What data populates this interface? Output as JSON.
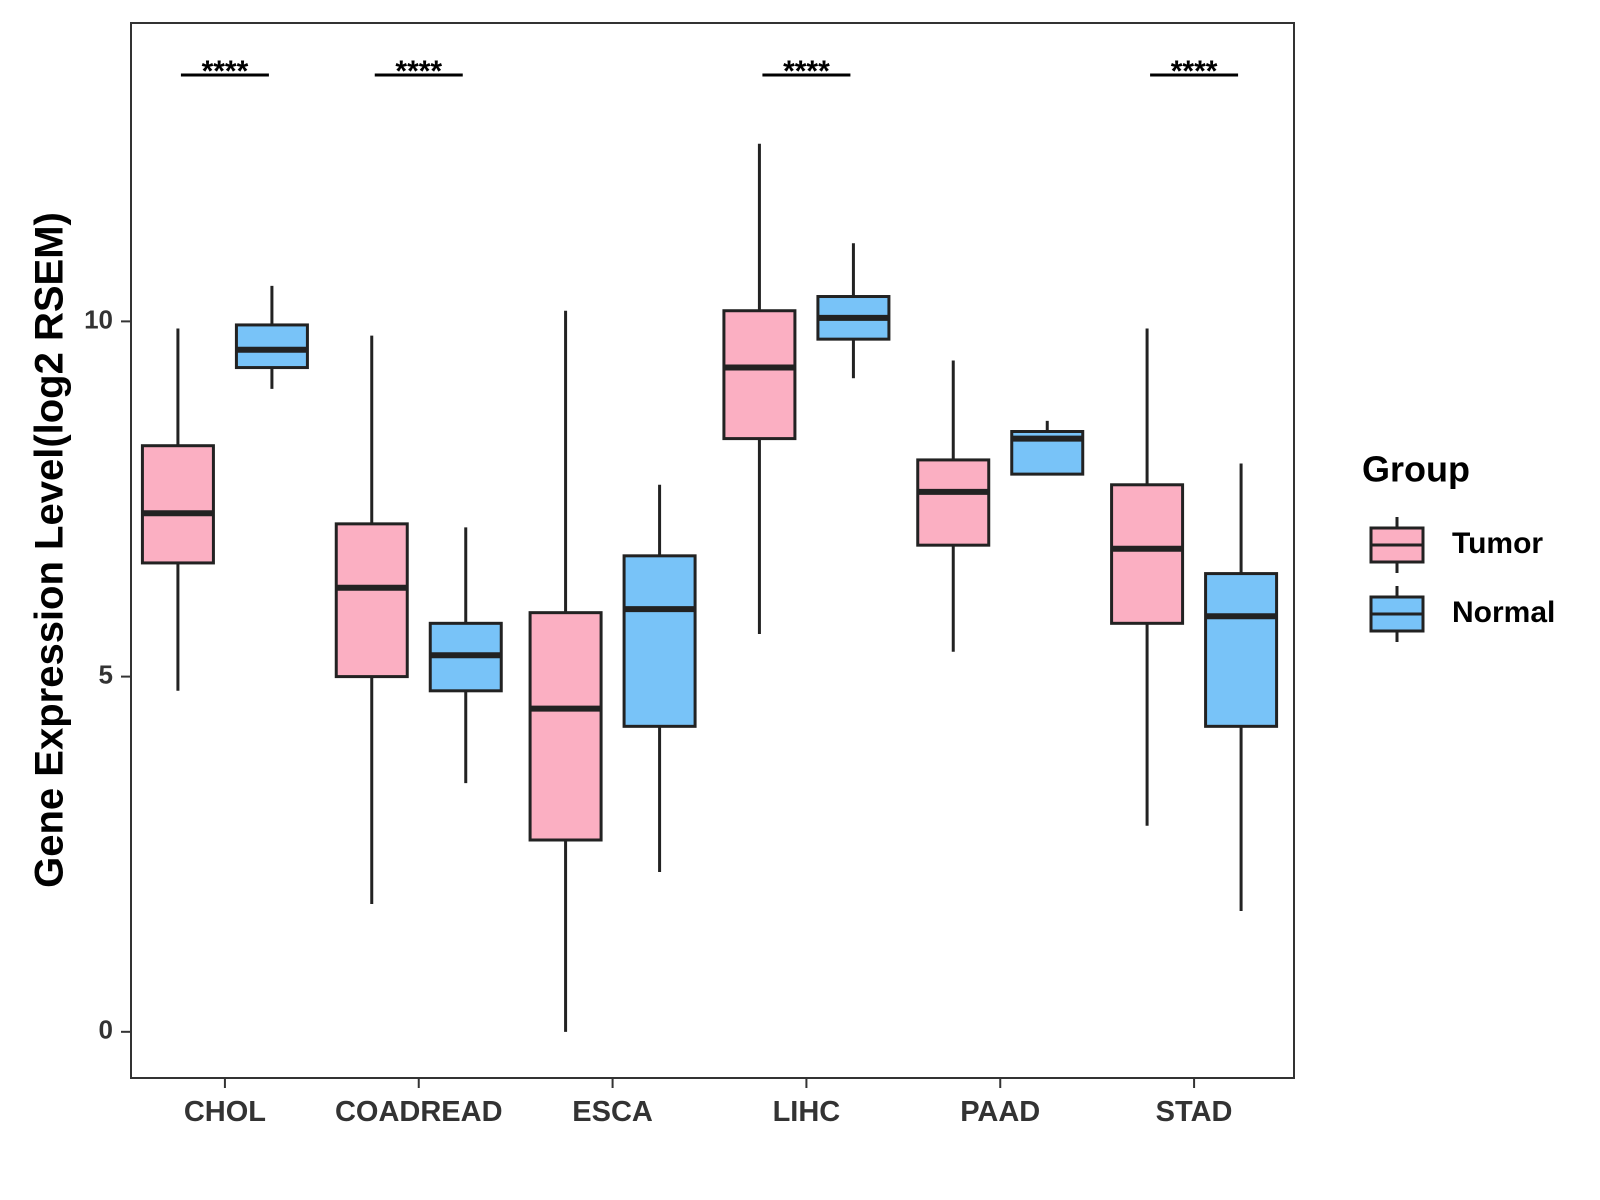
{
  "chart_data": {
    "type": "boxplot",
    "ylabel": "Gene Expression Level(log2 RSEM)",
    "xlabel": "",
    "ylim": [
      -0.65,
      14.2
    ],
    "yticks": [
      0,
      5,
      10
    ],
    "grid": false,
    "legend_position": "right",
    "legend_title": "Group",
    "categories": [
      "CHOL",
      "COADREAD",
      "ESCA",
      "LIHC",
      "PAAD",
      "STAD"
    ],
    "series": [
      {
        "name": "Tumor",
        "color": "#FBAFC2",
        "boxes": [
          {
            "min": 4.8,
            "q1": 6.6,
            "median": 7.3,
            "q3": 8.25,
            "max": 9.9
          },
          {
            "min": 1.8,
            "q1": 5.0,
            "median": 6.25,
            "q3": 7.15,
            "max": 9.8
          },
          {
            "min": 0.0,
            "q1": 2.7,
            "median": 4.55,
            "q3": 5.9,
            "max": 10.15
          },
          {
            "min": 5.6,
            "q1": 8.35,
            "median": 9.35,
            "q3": 10.15,
            "max": 12.5
          },
          {
            "min": 5.35,
            "q1": 6.85,
            "median": 7.6,
            "q3": 8.05,
            "max": 9.45
          },
          {
            "min": 2.9,
            "q1": 5.75,
            "median": 6.8,
            "q3": 7.7,
            "max": 9.9
          }
        ]
      },
      {
        "name": "Normal",
        "color": "#78C3F8",
        "boxes": [
          {
            "min": 9.05,
            "q1": 9.35,
            "median": 9.6,
            "q3": 9.95,
            "max": 10.5
          },
          {
            "min": 3.5,
            "q1": 4.8,
            "median": 5.3,
            "q3": 5.75,
            "max": 7.1
          },
          {
            "min": 2.25,
            "q1": 4.3,
            "median": 5.95,
            "q3": 6.7,
            "max": 7.7
          },
          {
            "min": 9.2,
            "q1": 9.75,
            "median": 10.05,
            "q3": 10.35,
            "max": 11.1
          },
          {
            "min": 7.85,
            "q1": 7.85,
            "median": 8.35,
            "q3": 8.45,
            "max": 8.6
          },
          {
            "min": 1.7,
            "q1": 4.3,
            "median": 5.85,
            "q3": 6.45,
            "max": 8.0
          }
        ]
      }
    ],
    "significance": [
      "****",
      "****",
      "",
      "****",
      "",
      "****"
    ]
  }
}
